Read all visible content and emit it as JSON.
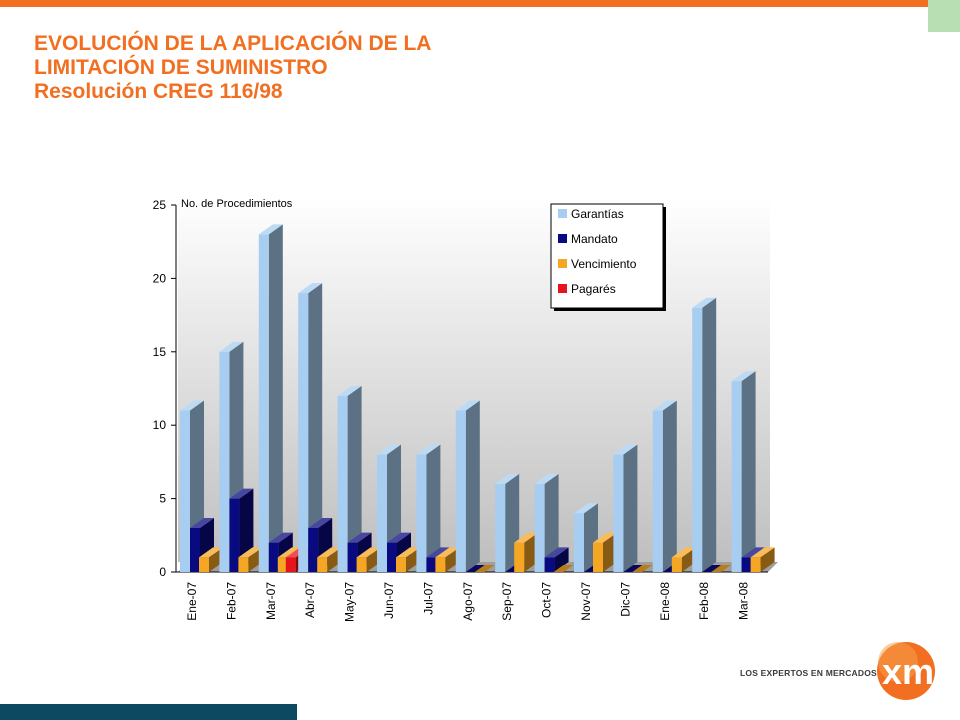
{
  "header": {
    "title_line1": "EVOLUCIÓN DE LA APLICACIÓN DE LA",
    "title_line2": "LIMITACIÓN DE SUMINISTRO",
    "subtitle": "Resolución CREG 116/98"
  },
  "logo": {
    "tagline": "LOS EXPERTOS EN MERCADOS",
    "brand": "xm"
  },
  "colors": {
    "accent": "#f26f21",
    "footer_bar": "#0d4a62",
    "corner": "#b7dfb3"
  },
  "chart_data": {
    "type": "bar",
    "ylabel": "No. de Procedimientos",
    "ylim": [
      0,
      25
    ],
    "yticks": [
      0,
      5,
      10,
      15,
      20,
      25
    ],
    "grid": false,
    "legend_position": "top-right",
    "categories": [
      "Ene-07",
      "Feb-07",
      "Mar-07",
      "Abr-07",
      "May-07",
      "Jun-07",
      "Jul-07",
      "Ago-07",
      "Sep-07",
      "Oct-07",
      "Nov-07",
      "Dic-07",
      "Ene-08",
      "Feb-08",
      "Mar-08"
    ],
    "series": [
      {
        "name": "Garantías",
        "color": "#a7cdf0",
        "values": [
          11,
          15,
          23,
          19,
          12,
          8,
          8,
          11,
          6,
          6,
          4,
          8,
          11,
          18,
          13
        ]
      },
      {
        "name": "Mandato",
        "color": "#0a0a80",
        "values": [
          3,
          5,
          2,
          3,
          2,
          2,
          1,
          0,
          0,
          1,
          0,
          0,
          0,
          0,
          1
        ]
      },
      {
        "name": "Vencimiento",
        "color": "#f5a623",
        "values": [
          1,
          1,
          1,
          1,
          1,
          1,
          1,
          0,
          2,
          0,
          2,
          0,
          1,
          0,
          1
        ]
      },
      {
        "name": "Pagarés",
        "color": "#e8141c",
        "values": [
          0,
          0,
          1,
          0,
          0,
          0,
          0,
          0,
          0,
          0,
          0,
          0,
          0,
          0,
          0
        ]
      }
    ]
  }
}
